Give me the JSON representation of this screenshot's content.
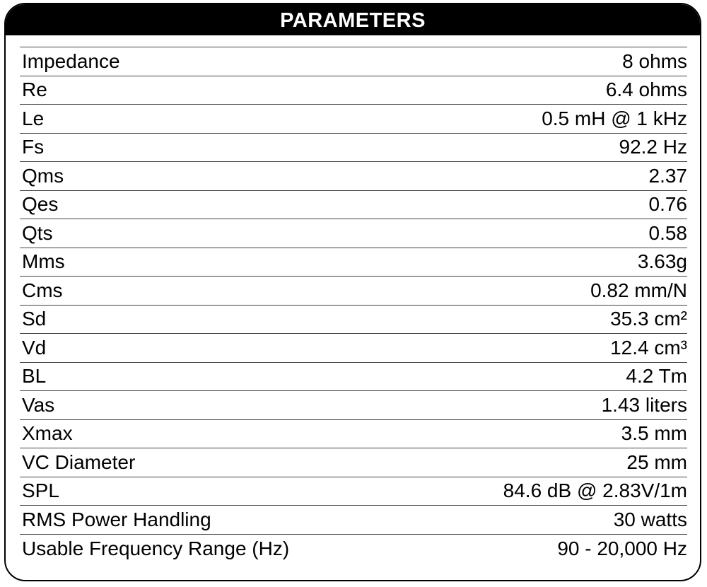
{
  "header": {
    "title": "PARAMETERS"
  },
  "rows": [
    {
      "label": "Impedance",
      "value": "8 ohms"
    },
    {
      "label": "Re",
      "value": "6.4 ohms"
    },
    {
      "label": "Le",
      "value": "0.5 mH @ 1 kHz"
    },
    {
      "label": "Fs",
      "value": "92.2 Hz"
    },
    {
      "label": "Qms",
      "value": "2.37"
    },
    {
      "label": "Qes",
      "value": "0.76"
    },
    {
      "label": "Qts",
      "value": "0.58"
    },
    {
      "label": "Mms",
      "value": "3.63g"
    },
    {
      "label": "Cms",
      "value": "0.82 mm/N"
    },
    {
      "label": "Sd",
      "value": "35.3 cm²"
    },
    {
      "label": "Vd",
      "value": "12.4 cm³"
    },
    {
      "label": "BL",
      "value": "4.2 Tm"
    },
    {
      "label": "Vas",
      "value": "1.43 liters"
    },
    {
      "label": "Xmax",
      "value": "3.5 mm"
    },
    {
      "label": "VC Diameter",
      "value": "25 mm"
    },
    {
      "label": "SPL",
      "value": "84.6 dB @ 2.83V/1m"
    },
    {
      "label": "RMS Power Handling",
      "value": "30 watts"
    },
    {
      "label": "Usable Frequency Range (Hz)",
      "value": "90 - 20,000 Hz"
    }
  ]
}
